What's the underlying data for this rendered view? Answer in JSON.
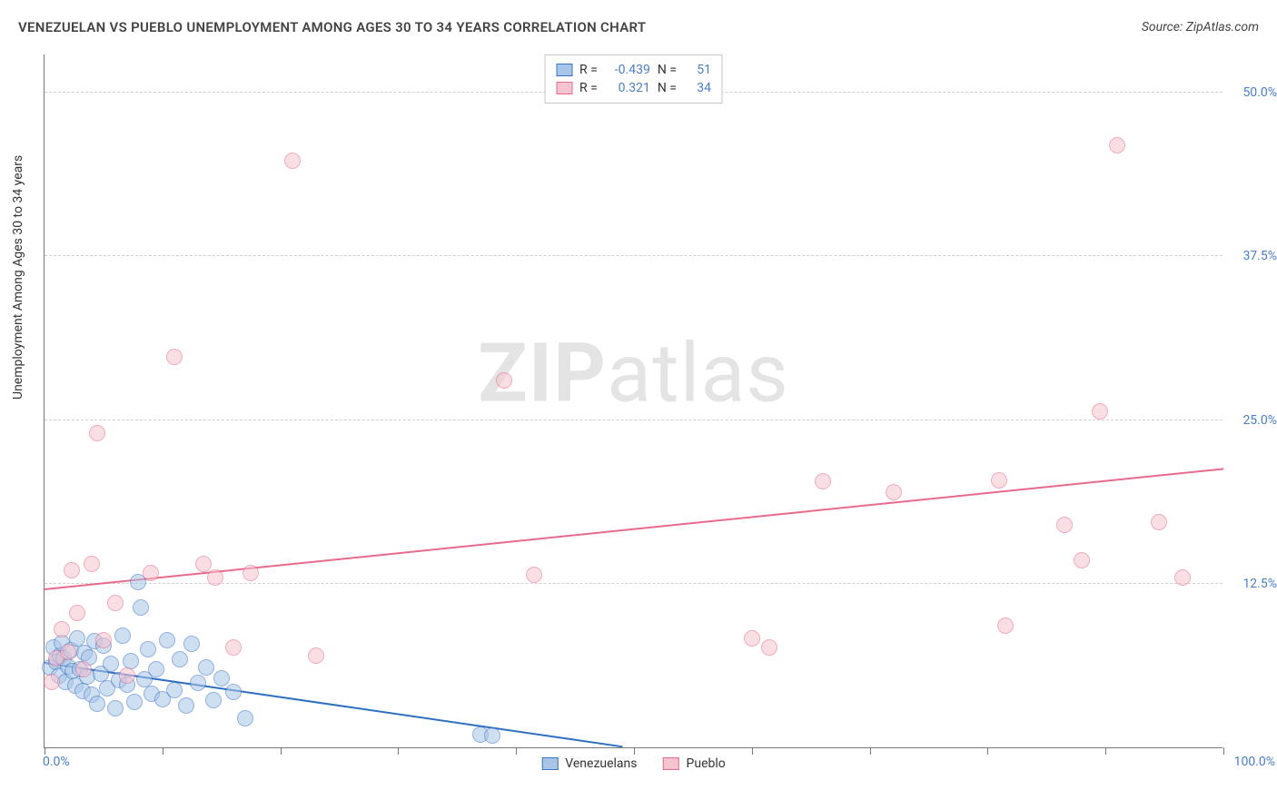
{
  "header": {
    "title": "VENEZUELAN VS PUEBLO UNEMPLOYMENT AMONG AGES 30 TO 34 YEARS CORRELATION CHART",
    "source_prefix": "Source: ",
    "source": "ZipAtlas.com"
  },
  "watermark": {
    "bold": "ZIP",
    "rest": "atlas"
  },
  "chart": {
    "type": "scatter",
    "ylabel": "Unemployment Among Ages 30 to 34 years",
    "xlim": [
      0,
      100
    ],
    "ylim": [
      0,
      53
    ],
    "background_color": "#ffffff",
    "grid_color": "#d8d8d8",
    "axis_color": "#777777",
    "tick_label_color": "#4a7ec9",
    "y_gridlines": [
      12.5,
      25.0,
      37.5,
      50.0
    ],
    "ytick_labels": [
      "12.5%",
      "25.0%",
      "37.5%",
      "50.0%"
    ],
    "x_ticks": [
      0,
      10,
      20,
      30,
      40,
      50,
      60,
      70,
      80,
      90,
      100
    ],
    "x_start_label": "0.0%",
    "x_end_label": "100.0%",
    "marker_radius": 9,
    "marker_border_width": 1.2,
    "series": [
      {
        "name": "Venezuelans",
        "fill_color": "#a8c5e8",
        "fill_opacity": 0.55,
        "stroke_color": "#3a74c4",
        "R": "-0.439",
        "N": "51",
        "trend": {
          "x1": 0,
          "y1": 6.4,
          "x2": 49,
          "y2": 0,
          "color": "#2f6fc0",
          "width": 2
        },
        "points": [
          [
            0.5,
            6.1
          ],
          [
            0.8,
            7.6
          ],
          [
            1.0,
            6.5
          ],
          [
            1.2,
            5.5
          ],
          [
            1.3,
            7.0
          ],
          [
            1.5,
            8.0
          ],
          [
            1.6,
            6.8
          ],
          [
            1.8,
            5.0
          ],
          [
            2.0,
            6.2
          ],
          [
            2.2,
            7.4
          ],
          [
            2.4,
            5.8
          ],
          [
            2.6,
            4.7
          ],
          [
            2.8,
            8.3
          ],
          [
            3.0,
            6.0
          ],
          [
            3.2,
            4.3
          ],
          [
            3.4,
            7.2
          ],
          [
            3.6,
            5.4
          ],
          [
            3.8,
            6.9
          ],
          [
            4.0,
            4.0
          ],
          [
            4.2,
            8.1
          ],
          [
            4.5,
            3.3
          ],
          [
            4.8,
            5.6
          ],
          [
            5.0,
            7.8
          ],
          [
            5.3,
            4.5
          ],
          [
            5.6,
            6.4
          ],
          [
            6.0,
            3.0
          ],
          [
            6.3,
            5.1
          ],
          [
            6.6,
            8.5
          ],
          [
            7.0,
            4.8
          ],
          [
            7.3,
            6.6
          ],
          [
            7.6,
            3.5
          ],
          [
            7.9,
            12.6
          ],
          [
            8.2,
            10.7
          ],
          [
            8.5,
            5.2
          ],
          [
            8.8,
            7.5
          ],
          [
            9.1,
            4.1
          ],
          [
            9.5,
            6.0
          ],
          [
            10.0,
            3.7
          ],
          [
            10.4,
            8.2
          ],
          [
            11.0,
            4.4
          ],
          [
            11.5,
            6.7
          ],
          [
            12.0,
            3.2
          ],
          [
            12.5,
            7.9
          ],
          [
            13.0,
            4.9
          ],
          [
            13.7,
            6.1
          ],
          [
            14.3,
            3.6
          ],
          [
            15.0,
            5.3
          ],
          [
            16.0,
            4.2
          ],
          [
            17.0,
            2.2
          ],
          [
            37.0,
            1.0
          ],
          [
            38.0,
            0.9
          ]
        ]
      },
      {
        "name": "Pueblo",
        "fill_color": "#f5c4cf",
        "fill_opacity": 0.55,
        "stroke_color": "#e56a8a",
        "R": "0.321",
        "N": "34",
        "trend": {
          "x1": 0,
          "y1": 12.0,
          "x2": 100,
          "y2": 21.2,
          "color": "#e86a8d",
          "width": 2
        },
        "points": [
          [
            0.6,
            5.0
          ],
          [
            1.0,
            6.8
          ],
          [
            1.5,
            9.0
          ],
          [
            2.0,
            7.3
          ],
          [
            2.3,
            13.5
          ],
          [
            2.8,
            10.3
          ],
          [
            3.3,
            6.0
          ],
          [
            4.0,
            14.0
          ],
          [
            4.5,
            24.0
          ],
          [
            5.0,
            8.2
          ],
          [
            6.0,
            11.0
          ],
          [
            7.0,
            5.5
          ],
          [
            9.0,
            13.3
          ],
          [
            11.0,
            29.8
          ],
          [
            13.5,
            14.0
          ],
          [
            14.5,
            13.0
          ],
          [
            16.0,
            7.6
          ],
          [
            17.5,
            13.3
          ],
          [
            21.0,
            44.8
          ],
          [
            23.0,
            7.0
          ],
          [
            39.0,
            28.0
          ],
          [
            41.5,
            13.2
          ],
          [
            60.0,
            8.3
          ],
          [
            61.5,
            7.6
          ],
          [
            66.0,
            20.3
          ],
          [
            72.0,
            19.5
          ],
          [
            81.0,
            20.4
          ],
          [
            81.5,
            9.3
          ],
          [
            86.5,
            17.0
          ],
          [
            88.0,
            14.3
          ],
          [
            89.5,
            25.7
          ],
          [
            91.0,
            46.0
          ],
          [
            94.5,
            17.2
          ],
          [
            96.5,
            13.0
          ]
        ]
      }
    ],
    "legend_bottom": [
      {
        "label": "Venezuelans",
        "fill": "#a8c5e8",
        "stroke": "#3a74c4"
      },
      {
        "label": "Pueblo",
        "fill": "#f5c4cf",
        "stroke": "#e56a8a"
      }
    ]
  }
}
